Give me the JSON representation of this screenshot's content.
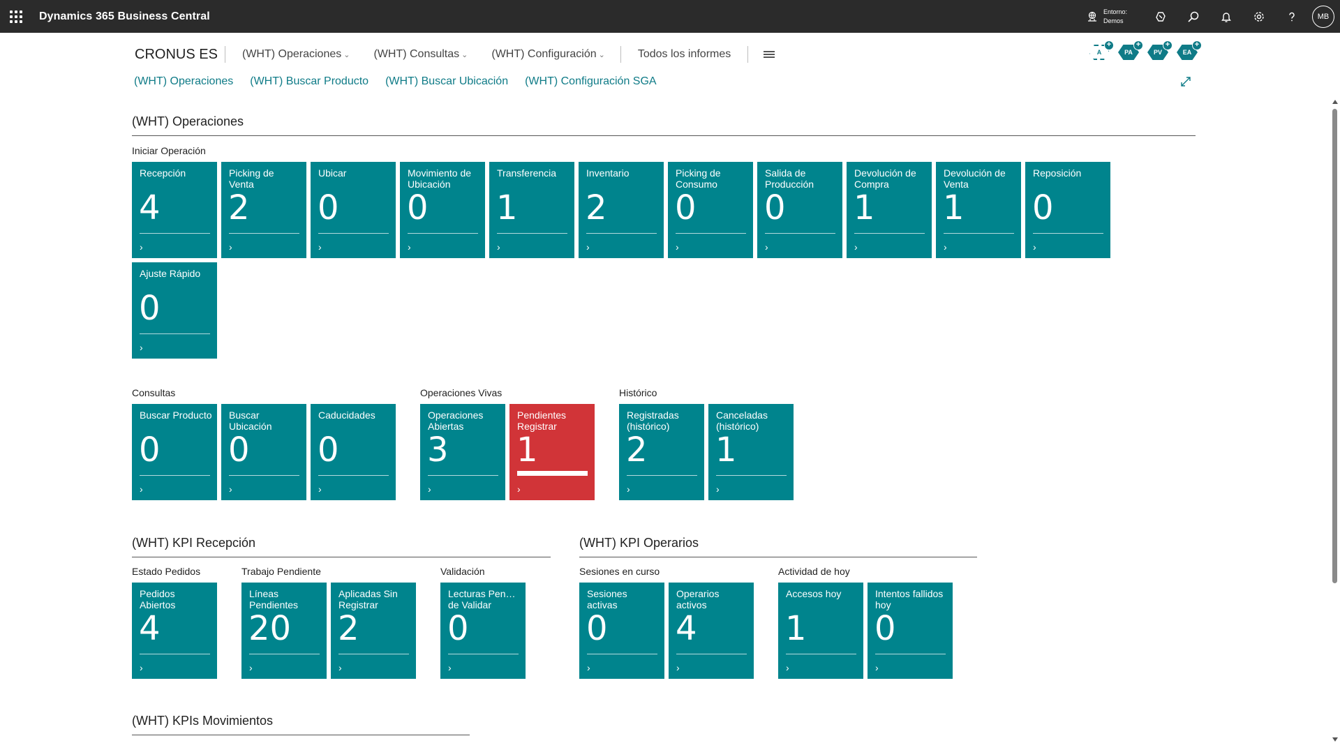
{
  "topbar": {
    "title": "Dynamics 365 Business Central",
    "env_label": "Entorno:",
    "env_value": "Demos",
    "avatar": "MB",
    "icons": [
      "environment-icon",
      "copilot-icon",
      "search-icon",
      "bell-icon",
      "settings-icon",
      "help-icon"
    ]
  },
  "company": "CRONUS ES",
  "menu": {
    "items": [
      "(WHT) Operaciones",
      "(WHT) Consultas",
      "(WHT) Configuración"
    ],
    "reports": "Todos los informes"
  },
  "navbar": [
    "(WHT) Operaciones",
    "(WHT) Buscar Producto",
    "(WHT) Buscar Ubicación",
    "(WHT) Configuración SGA"
  ],
  "roles": [
    "A",
    "PA",
    "PV",
    "EA"
  ],
  "sections": {
    "operaciones": "(WHT) Operaciones",
    "kpi_recepcion": "(WHT) KPI Recepción",
    "kpi_operarios": "(WHT) KPI Operarios",
    "kpis_movimientos": "(WHT) KPIs Movimientos"
  },
  "groups": {
    "iniciar": "Iniciar Operación",
    "consultas": "Consultas",
    "vivas": "Operaciones Vivas",
    "historico": "Histórico",
    "estado": "Estado Pedidos",
    "trabajo": "Trabajo Pendiente",
    "validacion": "Validación",
    "sesiones": "Sesiones en curso",
    "actividad": "Actividad de hoy"
  },
  "tiles": {
    "iniciar": [
      {
        "l1": "Recepción",
        "l2": "",
        "value": "4"
      },
      {
        "l1": "Picking de",
        "l2": "Venta",
        "value": "2"
      },
      {
        "l1": "Ubicar",
        "l2": "",
        "value": "0"
      },
      {
        "l1": "Movimiento de",
        "l2": "Ubicación",
        "value": "0"
      },
      {
        "l1": "Transferencia",
        "l2": "",
        "value": "1"
      },
      {
        "l1": "Inventario",
        "l2": "",
        "value": "2"
      },
      {
        "l1": "Picking de",
        "l2": "Consumo",
        "value": "0"
      },
      {
        "l1": "Salida de",
        "l2": "Producción",
        "value": "0"
      },
      {
        "l1": "Devolución de",
        "l2": "Compra",
        "value": "1"
      },
      {
        "l1": "Devolución de",
        "l2": "Venta",
        "value": "1"
      },
      {
        "l1": "Reposición",
        "l2": "",
        "value": "0"
      },
      {
        "l1": "Ajuste Rápido",
        "l2": "",
        "value": "0"
      }
    ],
    "consultas": [
      {
        "l1": "Buscar Producto",
        "l2": "",
        "value": "0"
      },
      {
        "l1": "Buscar",
        "l2": "Ubicación",
        "value": "0"
      },
      {
        "l1": "Caducidades",
        "l2": "",
        "value": "0"
      }
    ],
    "vivas": [
      {
        "l1": "Operaciones",
        "l2": "Abiertas",
        "value": "3"
      },
      {
        "l1": "Pendientes",
        "l2": "Registrar",
        "value": "1"
      }
    ],
    "historico": [
      {
        "l1": "Registradas",
        "l2": "(histórico)",
        "value": "2"
      },
      {
        "l1": "Canceladas",
        "l2": "(histórico)",
        "value": "1"
      }
    ],
    "estado": [
      {
        "l1": "Pedidos",
        "l2": "Abiertos",
        "value": "4"
      }
    ],
    "trabajo": [
      {
        "l1": "Líneas",
        "l2": "Pendientes",
        "value": "20"
      },
      {
        "l1": "Aplicadas Sin",
        "l2": "Registrar",
        "value": "2"
      }
    ],
    "validacion": [
      {
        "l1": "Lecturas Pendi...",
        "l2": "de Validar",
        "value": "0"
      }
    ],
    "sesiones": [
      {
        "l1": "Sesiones",
        "l2": "activas",
        "value": "0"
      },
      {
        "l1": "Operarios",
        "l2": "activos",
        "value": "4"
      }
    ],
    "actividad": [
      {
        "l1": "Accesos hoy",
        "l2": "",
        "value": "1"
      },
      {
        "l1": "Intentos fallidos",
        "l2": "hoy",
        "value": "0"
      }
    ]
  },
  "colors": {
    "tile": "#00848d",
    "alert": "#d13438",
    "link": "#0f7b87",
    "topbar": "#2b2b2b"
  }
}
